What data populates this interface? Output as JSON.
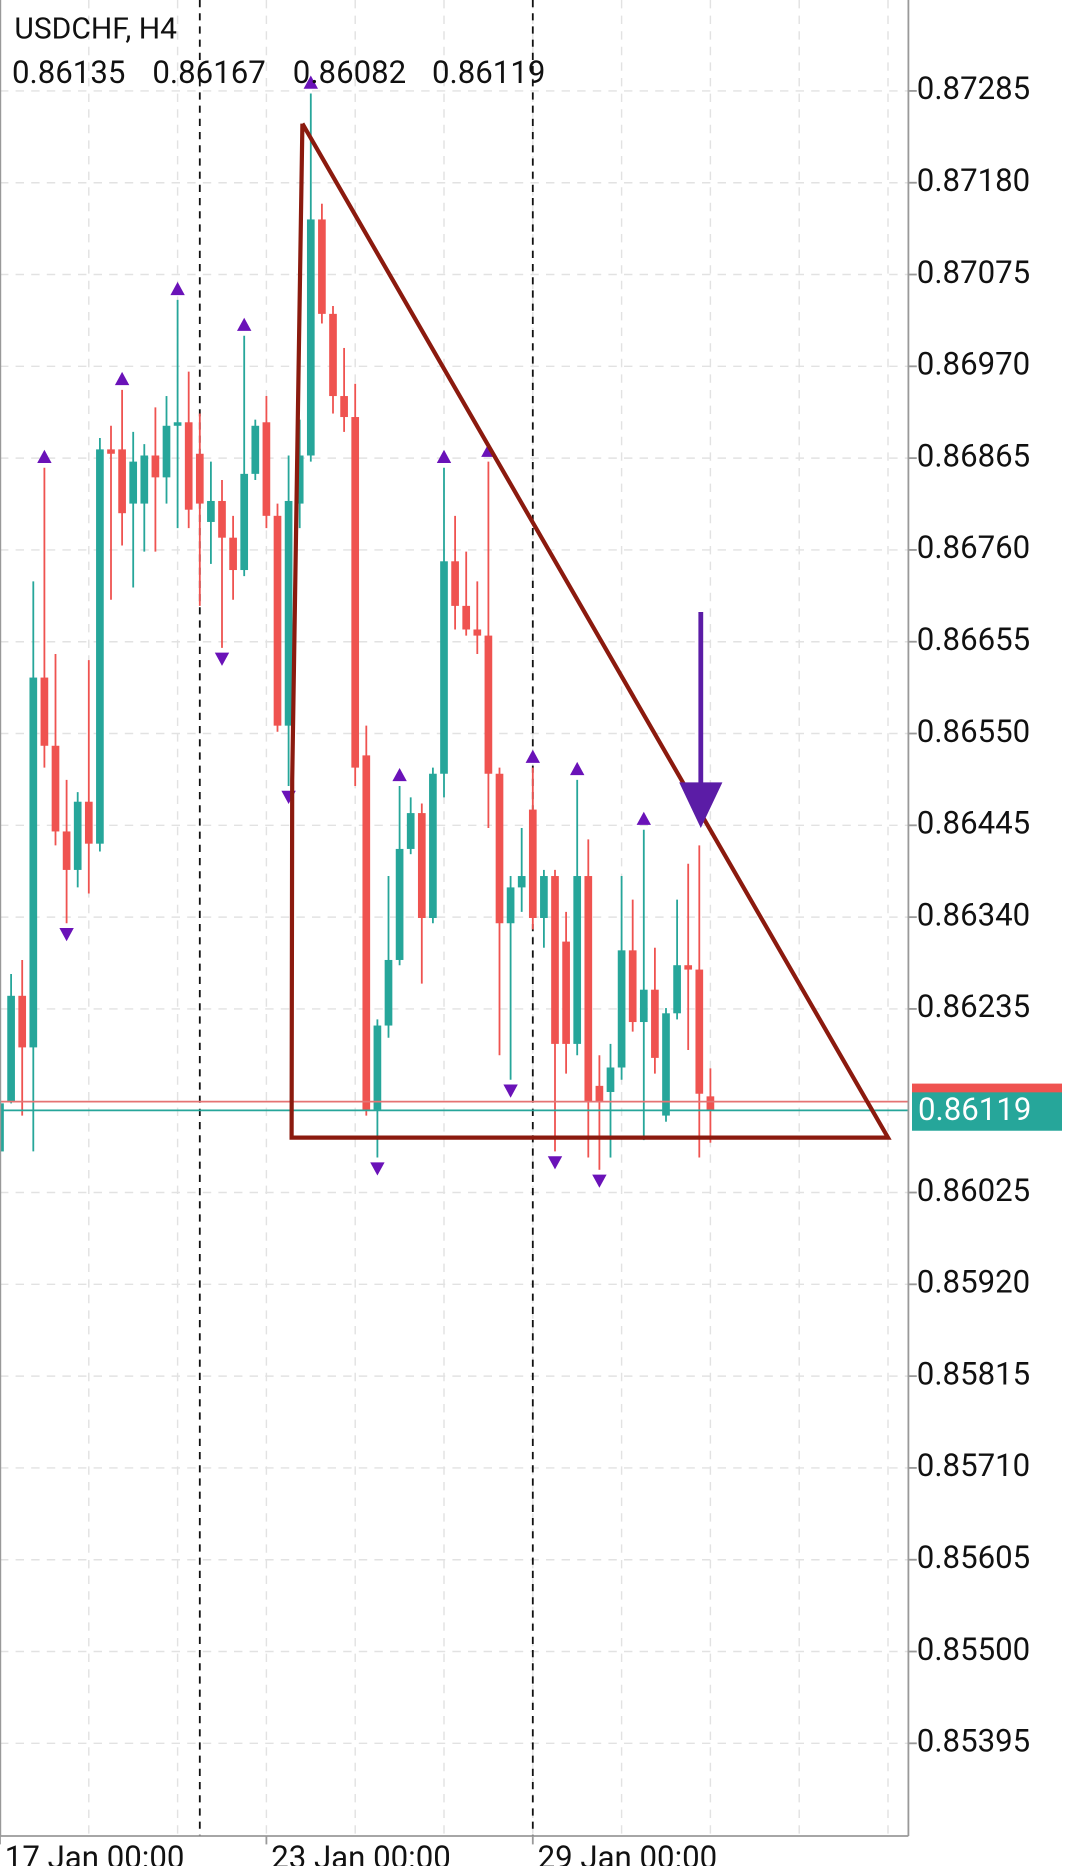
{
  "chart_data": {
    "type": "candlestick",
    "title": "USDCHF, H4",
    "categories": [
      "17 Jan 00:00",
      null,
      null,
      null,
      null,
      null,
      null,
      null,
      null,
      null,
      null,
      null,
      null,
      null,
      null,
      null,
      null,
      null,
      null,
      null,
      null,
      null,
      null,
      null,
      "23 Jan 00:00",
      null,
      null,
      null,
      null,
      null,
      null,
      null,
      null,
      null,
      null,
      null,
      null,
      null,
      null,
      null,
      null,
      null,
      null,
      null,
      null,
      null,
      null,
      null,
      "29 Jan 00:00",
      null,
      null,
      null,
      null,
      null,
      null,
      null,
      null,
      null,
      null,
      null,
      null,
      null,
      null,
      null,
      null
    ],
    "open": [
      0.86072,
      0.86129,
      0.8625,
      0.86191,
      0.86614,
      0.86536,
      0.86438,
      0.86394,
      0.86472,
      0.86424,
      0.86875,
      0.86875,
      0.86813,
      0.86813,
      0.86868,
      0.86843,
      0.86902,
      0.86906,
      0.8687,
      0.86792,
      0.86816,
      0.86774,
      0.86737,
      0.86847,
      0.86906,
      0.86799,
      0.86559,
      0.86813,
      0.86868,
      0.87138,
      0.8703,
      0.86936,
      0.86912,
      0.86525,
      0.8612,
      0.86216,
      0.86291,
      0.86418,
      0.86459,
      0.86339,
      0.86504,
      0.86747,
      0.86696,
      0.86669,
      0.86662,
      0.86504,
      0.86333,
      0.86374,
      0.86463,
      0.86339,
      0.86387,
      0.86312,
      0.86195,
      0.86387,
      0.86147,
      0.8614,
      0.86168,
      0.86302,
      0.8622,
      0.86257,
      0.86113,
      0.8623,
      0.86285,
      0.8628,
      0.86135
    ],
    "high": [
      0.86134,
      0.86275,
      0.86291,
      0.86724,
      0.86854,
      0.86641,
      0.86497,
      0.86483,
      0.86634,
      0.86888,
      0.86902,
      0.86943,
      0.86895,
      0.86881,
      0.86923,
      0.86936,
      0.87046,
      0.86964,
      0.86916,
      0.86861,
      0.8684,
      0.86799,
      0.87005,
      0.86909,
      0.86936,
      0.86813,
      0.86868,
      0.86909,
      0.87282,
      0.87156,
      0.87039,
      0.86991,
      0.8695,
      0.86559,
      0.86223,
      0.86387,
      0.8649,
      0.86477,
      0.8647,
      0.86511,
      0.86854,
      0.86799,
      0.86758,
      0.86724,
      0.86861,
      0.86511,
      0.86387,
      0.86442,
      0.86511,
      0.86394,
      0.86394,
      0.86346,
      0.86497,
      0.86429,
      0.86182,
      0.86195,
      0.86387,
      0.8636,
      0.8644,
      0.86305,
      0.86236,
      0.8636,
      0.86401,
      0.86422,
      0.86167
    ],
    "low": [
      0.86044,
      0.86127,
      0.86113,
      0.86072,
      0.86511,
      0.86422,
      0.86333,
      0.86374,
      0.86367,
      0.86415,
      0.86703,
      0.86765,
      0.86717,
      0.86758,
      0.86758,
      0.86813,
      0.86785,
      0.86785,
      0.86696,
      0.86744,
      0.86648,
      0.86703,
      0.8673,
      0.8684,
      0.86785,
      0.86552,
      0.8649,
      0.86785,
      0.86861,
      0.87019,
      0.86916,
      0.86895,
      0.8649,
      0.86113,
      0.86065,
      0.86202,
      0.86285,
      0.86412,
      0.86264,
      0.86333,
      0.86477,
      0.86669,
      0.86662,
      0.86641,
      0.86442,
      0.86182,
      0.86154,
      0.86346,
      0.86326,
      0.86305,
      0.86072,
      0.86161,
      0.86182,
      0.86065,
      0.86051,
      0.86065,
      0.86154,
      0.86209,
      0.86085,
      0.86161,
      0.86106,
      0.86223,
      0.86188,
      0.86065,
      0.86082
    ],
    "close": [
      0.86127,
      0.8625,
      0.86191,
      0.86614,
      0.86536,
      0.86438,
      0.86394,
      0.86472,
      0.86424,
      0.86875,
      0.8687,
      0.86802,
      0.86861,
      0.86868,
      0.86843,
      0.86902,
      0.86906,
      0.86806,
      0.86813,
      0.86816,
      0.86774,
      0.86737,
      0.86847,
      0.86902,
      0.86799,
      0.86559,
      0.86816,
      0.86868,
      0.87138,
      0.8703,
      0.86936,
      0.86912,
      0.86511,
      0.8612,
      0.86216,
      0.86291,
      0.86418,
      0.86459,
      0.86339,
      0.86504,
      0.86747,
      0.86696,
      0.86669,
      0.86662,
      0.86504,
      0.86333,
      0.86374,
      0.86387,
      0.86339,
      0.86387,
      0.86195,
      0.86195,
      0.86387,
      0.86129,
      0.86129,
      0.86168,
      0.86302,
      0.8622,
      0.86257,
      0.86179,
      0.8623,
      0.86285,
      0.8628,
      0.86138,
      0.86119
    ],
    "fractal_up": [
      null,
      null,
      null,
      null,
      0.86854,
      null,
      null,
      null,
      null,
      null,
      null,
      0.86943,
      null,
      null,
      null,
      null,
      0.87046,
      null,
      null,
      null,
      null,
      null,
      0.87005,
      null,
      null,
      null,
      null,
      null,
      0.87282,
      null,
      null,
      null,
      null,
      null,
      null,
      null,
      0.8649,
      null,
      null,
      null,
      0.86854,
      null,
      null,
      null,
      0.86861,
      null,
      null,
      null,
      0.86511,
      null,
      null,
      null,
      0.86497,
      null,
      null,
      null,
      null,
      null,
      0.8644,
      null,
      null,
      null,
      null,
      null,
      null
    ],
    "fractal_down": [
      null,
      null,
      null,
      null,
      null,
      null,
      0.86333,
      null,
      null,
      null,
      null,
      null,
      null,
      null,
      null,
      null,
      null,
      null,
      null,
      null,
      0.86648,
      null,
      null,
      null,
      null,
      null,
      0.8649,
      null,
      null,
      null,
      null,
      null,
      null,
      null,
      0.86065,
      null,
      null,
      null,
      null,
      null,
      null,
      null,
      null,
      null,
      null,
      null,
      0.86154,
      null,
      null,
      null,
      0.86072,
      null,
      null,
      null,
      0.86051,
      null,
      null,
      null,
      null,
      null,
      null,
      null,
      null,
      null,
      null
    ],
    "ask": 0.86129,
    "up_color": "#26a69a",
    "down_color": "#ef5350",
    "fractal_color": "#6a12b8",
    "ylim": [
      0.85289,
      0.87389
    ],
    "yticks": [
      0.87285,
      {
        "value": 0.8718,
        "label": "0.87180"
      },
      0.87075,
      {
        "value": 0.8697,
        "label": "0.86970"
      },
      0.86865,
      {
        "value": 0.8676,
        "label": "0.86760"
      },
      0.86655,
      {
        "value": 0.8655,
        "label": "0.86550"
      },
      0.86445,
      {
        "value": 0.8634,
        "label": "0.86340"
      },
      0.86235,
      0.86025,
      {
        "value": 0.8592,
        "label": "0.85920"
      },
      0.85815,
      {
        "value": 0.8571,
        "label": "0.85710"
      },
      0.85605,
      {
        "value": 0.855,
        "label": "0.85500"
      },
      0.85395
    ],
    "grid": true
  }
}
